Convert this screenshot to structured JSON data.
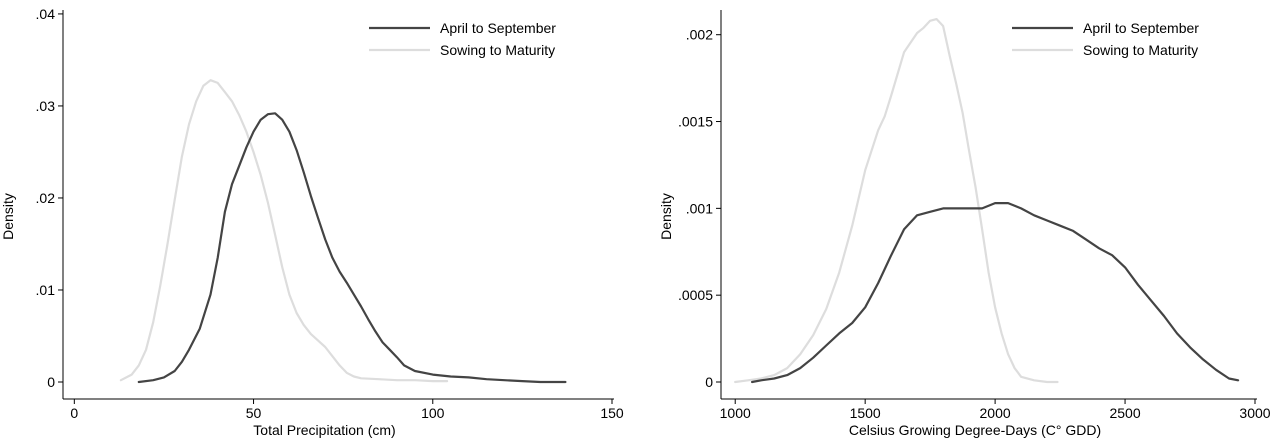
{
  "chart_data": [
    {
      "type": "line",
      "xlabel": "Total Precipitation (cm)",
      "ylabel": "Density",
      "xlim": [
        0,
        150
      ],
      "ylim": [
        0,
        0.04
      ],
      "xticks": [
        0,
        50,
        100,
        150
      ],
      "xtick_labels": [
        "0",
        "50",
        "100",
        "150"
      ],
      "yticks": [
        0,
        0.01,
        0.02,
        0.03,
        0.04
      ],
      "ytick_labels": [
        "0",
        ".01",
        ".02",
        ".03",
        ".04"
      ],
      "grid": false,
      "legend_position": "top-right",
      "series": [
        {
          "name": "April to September",
          "color": "#444444",
          "x": [
            18,
            22,
            25,
            28,
            30,
            32,
            35,
            38,
            40,
            42,
            44,
            46,
            48,
            50,
            52,
            54,
            56,
            58,
            60,
            62,
            64,
            66,
            68,
            70,
            72,
            74,
            76,
            78,
            80,
            82,
            84,
            86,
            88,
            90,
            92,
            95,
            100,
            105,
            110,
            115,
            120,
            125,
            130,
            137
          ],
          "values": [
            0.0,
            0.0002,
            0.0005,
            0.0012,
            0.0022,
            0.0035,
            0.0058,
            0.0095,
            0.0135,
            0.0185,
            0.0215,
            0.0235,
            0.0255,
            0.0272,
            0.0285,
            0.0291,
            0.0292,
            0.0285,
            0.0272,
            0.0252,
            0.0228,
            0.0202,
            0.0178,
            0.0155,
            0.0135,
            0.012,
            0.0108,
            0.0095,
            0.0082,
            0.0068,
            0.0055,
            0.0043,
            0.0035,
            0.0027,
            0.0018,
            0.0012,
            0.0008,
            0.0006,
            0.0005,
            0.0003,
            0.0002,
            0.0001,
            0.0,
            0.0
          ]
        },
        {
          "name": "Sowing to Maturity",
          "color": "#dddddd",
          "x": [
            13,
            16,
            18,
            20,
            22,
            24,
            26,
            28,
            30,
            32,
            34,
            36,
            38,
            40,
            42,
            44,
            46,
            48,
            50,
            52,
            54,
            56,
            58,
            60,
            62,
            64,
            66,
            68,
            70,
            72,
            74,
            76,
            78,
            80,
            85,
            90,
            95,
            100,
            104
          ],
          "values": [
            0.0002,
            0.0008,
            0.0018,
            0.0035,
            0.0065,
            0.0105,
            0.015,
            0.0198,
            0.0245,
            0.028,
            0.0305,
            0.0322,
            0.0328,
            0.0325,
            0.0315,
            0.0305,
            0.029,
            0.0272,
            0.025,
            0.0225,
            0.0195,
            0.016,
            0.0125,
            0.0095,
            0.0075,
            0.0062,
            0.0052,
            0.0045,
            0.0038,
            0.0028,
            0.0018,
            0.001,
            0.0006,
            0.0004,
            0.0003,
            0.0002,
            0.0002,
            0.0001,
            0.0001
          ]
        }
      ]
    },
    {
      "type": "line",
      "xlabel": "Celsius Growing Degree-Days (C° GDD)",
      "ylabel": "Density",
      "xlim": [
        1000,
        3000
      ],
      "ylim": [
        0,
        0.0021
      ],
      "xticks": [
        1000,
        1500,
        2000,
        2500,
        3000
      ],
      "xtick_labels": [
        "1000",
        "1500",
        "2000",
        "2500",
        "3000"
      ],
      "yticks": [
        0,
        0.0005,
        0.001,
        0.0015,
        0.002
      ],
      "ytick_labels": [
        "0",
        ".0005",
        ".001",
        ".0015",
        ".002"
      ],
      "grid": false,
      "legend_position": "top-right",
      "series": [
        {
          "name": "April to September",
          "color": "#444444",
          "x": [
            1065,
            1100,
            1150,
            1200,
            1250,
            1300,
            1350,
            1400,
            1450,
            1500,
            1550,
            1600,
            1650,
            1700,
            1750,
            1800,
            1850,
            1900,
            1950,
            2000,
            2050,
            2100,
            2150,
            2200,
            2250,
            2300,
            2350,
            2400,
            2450,
            2500,
            2550,
            2600,
            2650,
            2700,
            2750,
            2800,
            2850,
            2900,
            2935
          ],
          "values": [
            0.0,
            1e-05,
            2e-05,
            4e-05,
            8e-05,
            0.00014,
            0.00021,
            0.00028,
            0.00034,
            0.00043,
            0.00057,
            0.00073,
            0.00088,
            0.00096,
            0.00098,
            0.001,
            0.001,
            0.001,
            0.001,
            0.00103,
            0.00103,
            0.001,
            0.00096,
            0.00093,
            0.0009,
            0.00087,
            0.00082,
            0.00077,
            0.00073,
            0.00066,
            0.00056,
            0.00047,
            0.00038,
            0.00028,
            0.0002,
            0.00013,
            7e-05,
            2e-05,
            1e-05
          ]
        },
        {
          "name": "Sowing to Maturity",
          "color": "#dddddd",
          "x": [
            1000,
            1050,
            1100,
            1150,
            1200,
            1250,
            1300,
            1350,
            1400,
            1450,
            1500,
            1550,
            1575,
            1600,
            1650,
            1700,
            1725,
            1750,
            1775,
            1800,
            1825,
            1850,
            1875,
            1900,
            1925,
            1950,
            1975,
            2000,
            2025,
            2050,
            2075,
            2100,
            2150,
            2200,
            2240
          ],
          "values": [
            0.0,
            1e-05,
            2e-05,
            4e-05,
            8e-05,
            0.00016,
            0.00027,
            0.00042,
            0.00063,
            0.0009,
            0.00122,
            0.00145,
            0.00153,
            0.00165,
            0.0019,
            0.00201,
            0.00204,
            0.00208,
            0.00209,
            0.00205,
            0.00188,
            0.00172,
            0.00155,
            0.00133,
            0.00112,
            0.00088,
            0.00063,
            0.00043,
            0.00028,
            0.00016,
            8e-05,
            3e-05,
            1e-05,
            0.0,
            0.0
          ]
        }
      ]
    }
  ]
}
